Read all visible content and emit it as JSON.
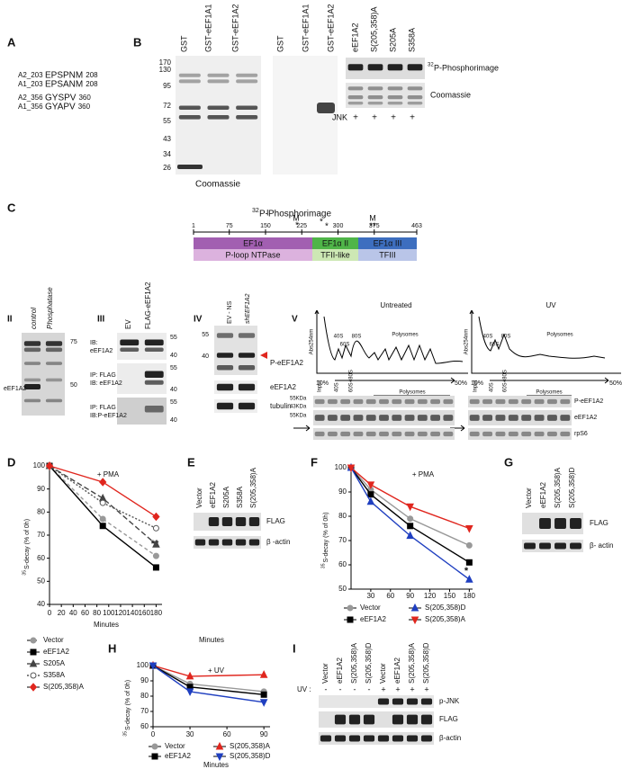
{
  "panel_labels": [
    "A",
    "B",
    "C",
    "D",
    "E",
    "F",
    "G",
    "H",
    "I"
  ],
  "A": {
    "rows": [
      {
        "id": "A2_203",
        "seq": [
          {
            "text": "EP"
          },
          {
            "text": "S",
            "color": "#e0261e"
          },
          {
            "text": "PNM"
          }
        ],
        "end": "208"
      },
      {
        "id": "A1_203",
        "seq": [
          {
            "text": "EPSANM"
          }
        ],
        "end": "208"
      },
      {
        "id": "A2_356",
        "seq": [
          {
            "text": "GY"
          },
          {
            "text": "S",
            "color": "#e0261e"
          },
          {
            "text": "PV"
          }
        ],
        "end": "360"
      },
      {
        "id": "A1_356",
        "seq": [
          {
            "text": "GYAPV"
          }
        ],
        "end": "360"
      }
    ]
  },
  "B": {
    "lanes": [
      "GST",
      "GST-eEF1A1",
      "GST-eEF1A2"
    ],
    "markers": [
      170,
      130,
      95,
      72,
      55,
      43,
      34,
      26
    ],
    "coomassie": "Coomassie",
    "phospho_sup": "32",
    "phospho": "P-Phosphorimage",
    "mut_lanes": [
      "eEF1A2",
      "S(205,358)A",
      "S205A",
      "S358A"
    ],
    "jnk": "JNK",
    "jnk_signs": [
      "+",
      "+",
      "+",
      "+"
    ]
  },
  "C": {
    "sub": "I",
    "ruler": [
      1,
      75,
      150,
      225,
      300,
      375,
      463
    ],
    "marks": [
      "M",
      "M"
    ],
    "stars": [
      "*",
      "*",
      "*",
      "**"
    ],
    "domains": [
      {
        "name": "EF1α",
        "sub": "P-loop NTPase"
      },
      {
        "name": "EF1α II",
        "sub": "TFII-like"
      },
      {
        "name": "EF1α III",
        "sub": "TFIII"
      }
    ]
  },
  "C_II": {
    "label": "II",
    "lanes": [
      "control",
      "Phosphatase"
    ],
    "markers": [
      75,
      50
    ],
    "band": "eEF1A2"
  },
  "C_III": {
    "label": "III",
    "lanes": [
      "EV",
      "FLAG-eEF1A2"
    ],
    "markers": [
      55,
      40
    ],
    "blots": [
      [
        "IB:",
        "eEF1A2"
      ],
      [
        "IP: FLAG",
        "IB: eEF1A2"
      ],
      [
        "IP: FLAG",
        "IB:P-eEF1A2"
      ]
    ]
  },
  "C_IV": {
    "label": "IV",
    "lanes": [
      "EV - NS",
      "shEEF1A2"
    ],
    "markers": [
      55,
      40
    ],
    "rows": [
      "P-eEF1A2",
      "eEF1A2",
      "tubulin"
    ]
  },
  "C_V": {
    "label": "V",
    "profiles": [
      "Untreated",
      "UV"
    ],
    "axis": "Abs254nm",
    "peaks": [
      "40S",
      "60S",
      "80S"
    ],
    "polysomes": "Polysomes",
    "gradient": [
      "10%",
      "50%"
    ],
    "lanes": [
      "Input",
      "40S",
      "60S+80S"
    ],
    "kda": [
      "55KDa",
      "43KDa",
      "55KDa"
    ],
    "rows": [
      "P-eEF1A2",
      "eEF1A2",
      "rpS6"
    ]
  },
  "E": {
    "lanes": [
      "Vector",
      "eEF1A2",
      "S205A",
      "S358A",
      "S(205,358)A"
    ],
    "rows": [
      "FLAG",
      "β -actin"
    ]
  },
  "G": {
    "lanes": [
      "Vector",
      "eEF1A2",
      "S(205,358)A",
      "S(205,358)D"
    ],
    "rows": [
      "FLAG",
      "β- actin"
    ]
  },
  "I": {
    "lanes": [
      "Vector",
      "eEF1A2",
      "S(205,358)A",
      "S(205,358)D",
      "Vector",
      "eEF1A2",
      "S(205,358)A",
      "S(205,358)D"
    ],
    "uv": "UV :",
    "signs": [
      "-",
      "-",
      "-",
      "-",
      "+",
      "+",
      "+",
      "+"
    ],
    "rows": [
      "p-JNK",
      "FLAG",
      "β-actin"
    ]
  },
  "chart_data": [
    {
      "type": "line",
      "title": "+ PMA",
      "ylabel_sup": "35",
      "ylabel": "S-decay (% of 0h)",
      "xlabel": "Minutes",
      "annotation": "**",
      "x": [
        0,
        90,
        180
      ],
      "xlim": [
        0,
        190
      ],
      "ylim": [
        40,
        100
      ],
      "xticks": [
        0,
        20,
        40,
        60,
        80,
        100,
        120,
        140,
        160,
        180
      ],
      "yticks": [
        40,
        50,
        60,
        70,
        80,
        90,
        100
      ],
      "series": [
        {
          "name": "Vector",
          "color": "#999999",
          "marker": "circle",
          "dash": "4 3",
          "values": [
            100,
            77,
            61
          ]
        },
        {
          "name": "eEF1A2",
          "color": "#000000",
          "marker": "square",
          "dash": "none",
          "values": [
            100,
            74,
            56
          ]
        },
        {
          "name": "S205A",
          "color": "#444444",
          "marker": "triangle",
          "dash": "6 3",
          "values": [
            100,
            86,
            66
          ]
        },
        {
          "name": "S358A",
          "color": "#555555",
          "marker": "circle-open",
          "dash": "2 2",
          "values": [
            100,
            84,
            73
          ]
        },
        {
          "name": "S(205,358)A",
          "color": "#e0261e",
          "marker": "diamond",
          "dash": "none",
          "values": [
            100,
            93,
            78
          ]
        }
      ]
    },
    {
      "type": "line",
      "title": "+ PMA",
      "ylabel_sup": "35",
      "ylabel": "S-decay (% of 0h)",
      "annotation": "*",
      "x": [
        0,
        30,
        90,
        180
      ],
      "xlim": [
        0,
        185
      ],
      "ylim": [
        50,
        100
      ],
      "xticks": [
        30,
        60,
        90,
        120,
        150,
        180
      ],
      "yticks": [
        50,
        60,
        70,
        80,
        90,
        100
      ],
      "series": [
        {
          "name": "Vector",
          "color": "#999999",
          "marker": "circle",
          "dash": "none",
          "values": [
            100,
            91,
            79,
            68
          ]
        },
        {
          "name": "eEF1A2",
          "color": "#000000",
          "marker": "square",
          "dash": "none",
          "values": [
            100,
            89,
            76,
            61
          ]
        },
        {
          "name": "S(205,358)D",
          "color": "#1f3fc0",
          "marker": "triangle",
          "dash": "none",
          "values": [
            100,
            86,
            72,
            54
          ]
        },
        {
          "name": "S(205,358)A",
          "color": "#e0261e",
          "marker": "triangle-down",
          "dash": "none",
          "values": [
            100,
            93,
            84,
            75
          ]
        }
      ]
    },
    {
      "type": "line",
      "heading": "Minutes",
      "title": "+ UV",
      "ylabel_sup": "35",
      "ylabel": "S-decay (% of 0h)",
      "xlabel": "Minutes",
      "x": [
        0,
        30,
        90
      ],
      "xlim": [
        0,
        95
      ],
      "ylim": [
        60,
        100
      ],
      "xticks": [
        0,
        30,
        60,
        90
      ],
      "yticks": [
        60,
        70,
        80,
        90,
        100
      ],
      "series": [
        {
          "name": "Vector",
          "color": "#999999",
          "marker": "circle",
          "dash": "none",
          "values": [
            100,
            88,
            83
          ]
        },
        {
          "name": "S(205,358)A",
          "color": "#e0261e",
          "marker": "triangle",
          "dash": "none",
          "values": [
            100,
            93,
            94
          ]
        },
        {
          "name": "eEF1A2",
          "color": "#000000",
          "marker": "square",
          "dash": "none",
          "values": [
            100,
            86,
            81
          ]
        },
        {
          "name": "S(205,358)D",
          "color": "#1f3fc0",
          "marker": "triangle-down",
          "dash": "none",
          "values": [
            100,
            83,
            76
          ]
        }
      ]
    }
  ]
}
